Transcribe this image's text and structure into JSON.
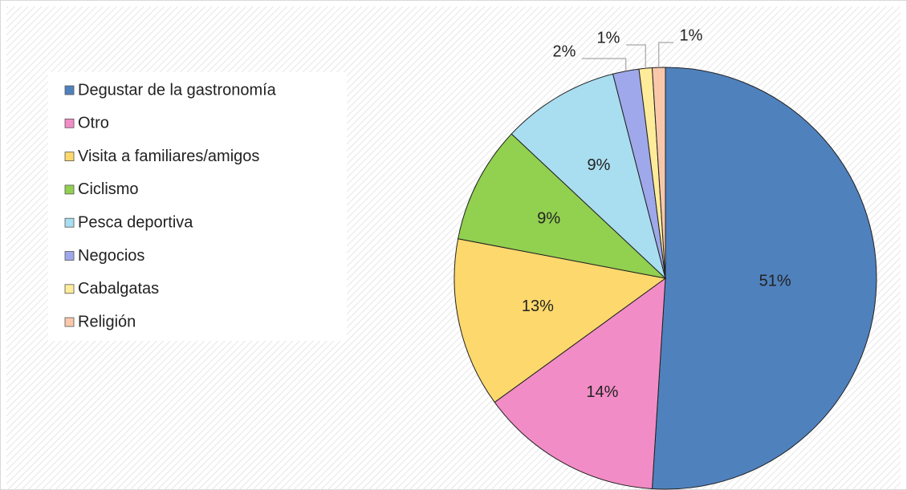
{
  "chart_data": {
    "type": "pie",
    "categories": [
      "Degustar de la gastronomía",
      "Otro",
      "Visita a familiares/amigos",
      "Ciclismo",
      "Pesca deportiva",
      "Negocios",
      "Cabalgatas",
      "Religión"
    ],
    "values": [
      51,
      14,
      13,
      9,
      9,
      2,
      1,
      1
    ],
    "value_labels": [
      "51%",
      "14%",
      "13%",
      "9%",
      "9%",
      "2%",
      "1%",
      "1%"
    ],
    "colors": [
      "#4f81bd",
      "#f28cc6",
      "#fdd86c",
      "#92d050",
      "#a9def0",
      "#9ea8ea",
      "#ffec9a",
      "#f9c8ab"
    ],
    "legend": "left"
  }
}
